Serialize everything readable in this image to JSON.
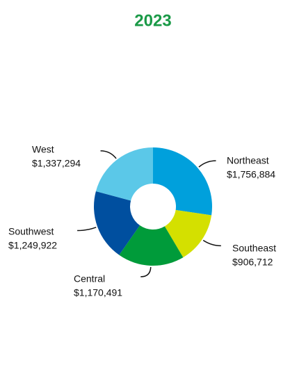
{
  "chart_data": {
    "type": "donut",
    "title": "2023",
    "categories": [
      "Northeast",
      "Southeast",
      "Central",
      "Southwest",
      "West"
    ],
    "values": [
      1756884,
      906712,
      1170491,
      1249922,
      1337294
    ],
    "value_labels": [
      "$1,756,884",
      "$906,712",
      "$1,170,491",
      "$1,249,922",
      "$1,337,294"
    ],
    "colors": [
      "#00a0dc",
      "#d4e000",
      "#009b3a",
      "#004f9f",
      "#5bc8e8"
    ]
  }
}
